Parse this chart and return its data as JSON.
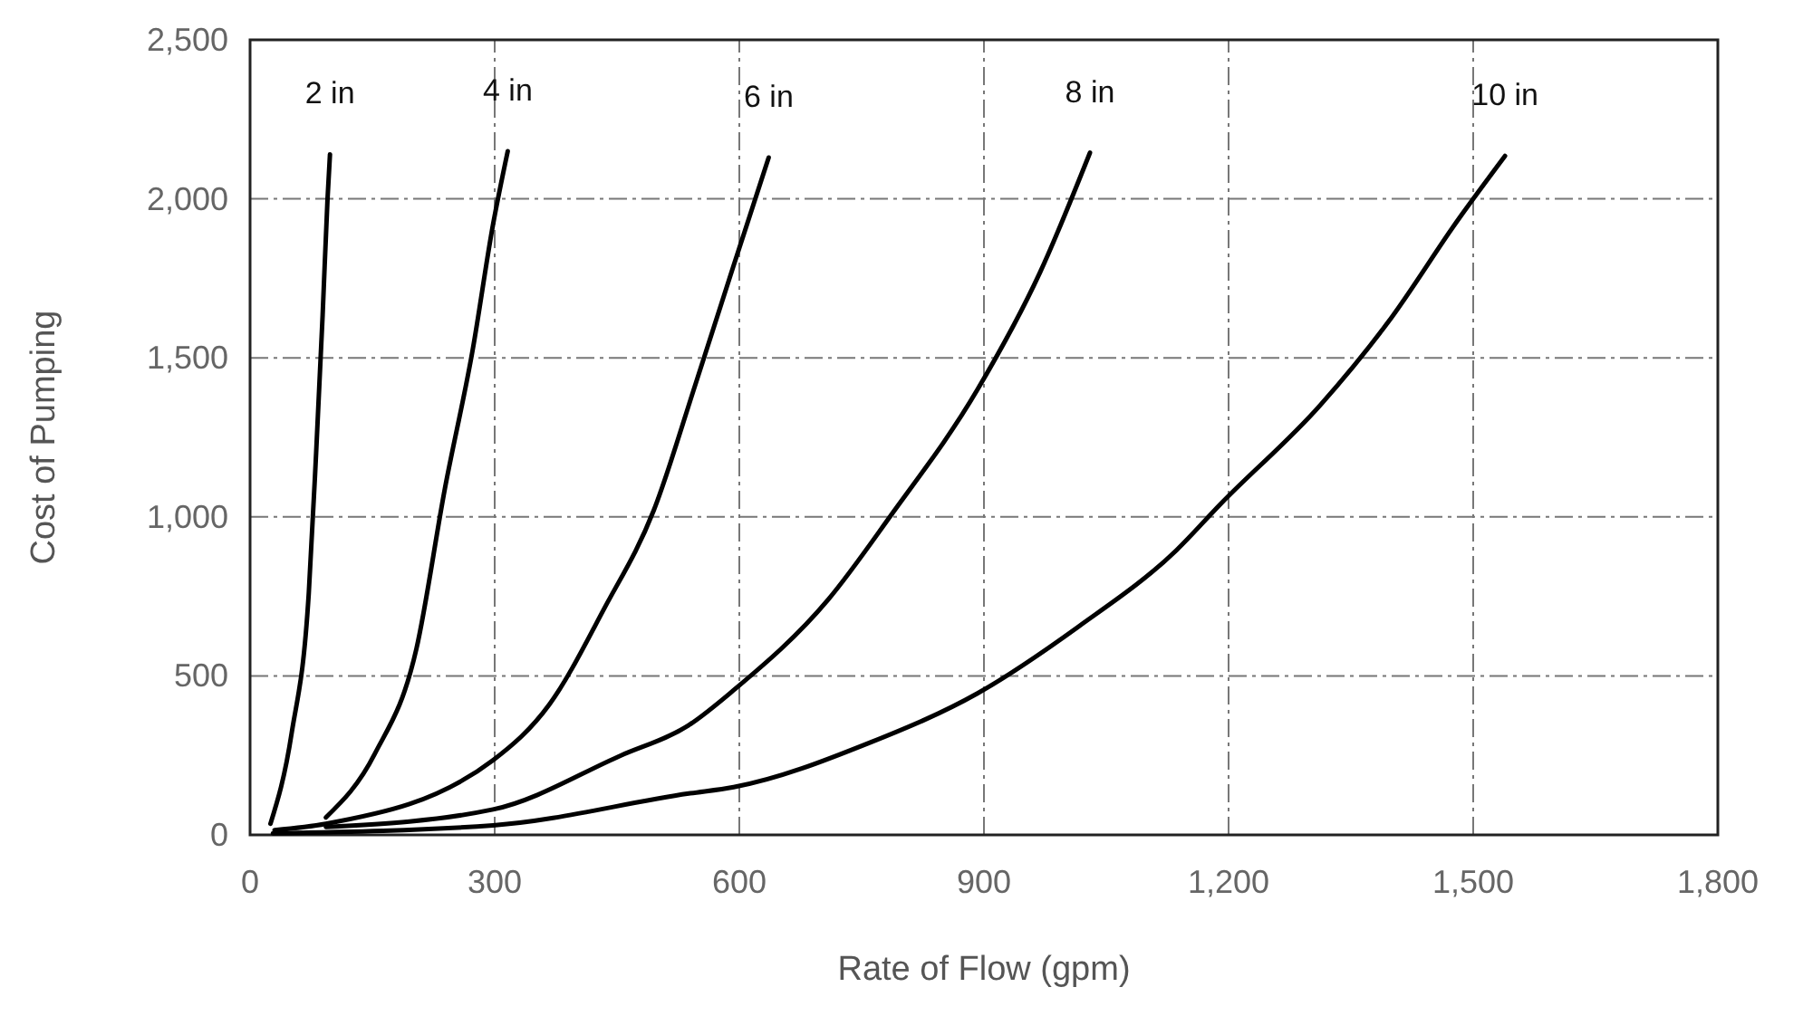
{
  "chart_data": {
    "type": "line",
    "xlabel": "Rate of Flow (gpm)",
    "ylabel": "Cost of Pumping",
    "xlim": [
      0,
      1800
    ],
    "ylim": [
      0,
      2500
    ],
    "xticks": [
      0,
      300,
      600,
      900,
      {
        "value": 1200,
        "label": "1,200"
      },
      {
        "value": 1500,
        "label": "1,500"
      },
      {
        "value": 1800,
        "label": "1,800"
      }
    ],
    "yticks": [
      0,
      500,
      {
        "value": 1000,
        "label": "1,000"
      },
      {
        "value": 1500,
        "label": "1,500"
      },
      {
        "value": 2000,
        "label": "2,000"
      },
      {
        "value": 2500,
        "label": "2,500"
      }
    ],
    "grid": true,
    "line_style": "solid",
    "series": [
      {
        "name": "2 in",
        "color": "#000000",
        "x": [
          25,
          51,
          72,
          81,
          89,
          95,
          98
        ],
        "values": [
          35,
          320,
          760,
          1200,
          1635,
          2000,
          2140
        ]
      },
      {
        "name": "4 in",
        "color": "#000000",
        "x": [
          93,
          153,
          204,
          239,
          273,
          298,
          316
        ],
        "values": [
          55,
          255,
          585,
          1090,
          1525,
          1920,
          2150
        ]
      },
      {
        "name": "6 in",
        "color": "#000000",
        "x": [
          30,
          93,
          298,
          367,
          435,
          495,
          546,
          593,
          636
        ],
        "values": [
          15,
          35,
          235,
          410,
          715,
          1020,
          1415,
          1790,
          2130
        ]
      },
      {
        "name": "8 in",
        "color": "#000000",
        "x": [
          93,
          298,
          455,
          538,
          593,
          709,
          786,
          892,
          969,
          1030
        ],
        "values": [
          25,
          80,
          250,
          345,
          455,
          740,
          1005,
          1400,
          1770,
          2145
        ]
      },
      {
        "name": "10 in",
        "color": "#000000",
        "x": [
          28,
          298,
          538,
          593,
          760,
          892,
          1016,
          1136,
          1190,
          1312,
          1395,
          1483,
          1539
        ],
        "values": [
          5,
          30,
          130,
          150,
          290,
          445,
          655,
          895,
          1040,
          1350,
          1610,
          1940,
          2135
        ]
      }
    ]
  }
}
